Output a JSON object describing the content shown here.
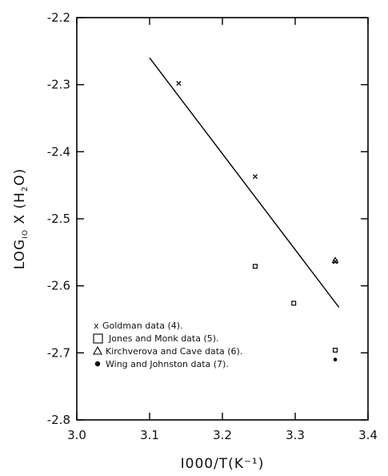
{
  "chart_data": {
    "type": "scatter",
    "xlabel": "I000/T(K⁻¹)",
    "ylabel_parts": {
      "prefix": "LOG",
      "subscript": "IO",
      "mid": " X (H",
      "subscript2": "2",
      "suffix": "O)"
    },
    "xlim": [
      3.0,
      3.4
    ],
    "ylim": [
      -2.8,
      -2.2
    ],
    "xticks": [
      3.0,
      3.1,
      3.2,
      3.3,
      3.4
    ],
    "xtick_labels": [
      "3.0",
      "3.1",
      "3.2",
      "3.3",
      "3.4"
    ],
    "yticks": [
      -2.2,
      -2.3,
      -2.4,
      -2.5,
      -2.6,
      -2.7,
      -2.8
    ],
    "ytick_labels": [
      "-2.2",
      "-2.3",
      "-2.4",
      "-2.5",
      "-2.6",
      "-2.7",
      "-2.8"
    ],
    "grid": false,
    "legend_position": "bottom-left",
    "fit_line": {
      "x": [
        3.1,
        3.36
      ],
      "y": [
        -2.26,
        -2.632
      ]
    },
    "series": [
      {
        "name": "Goldman data (4).",
        "marker": "x",
        "legend_symbol": "x",
        "points": [
          {
            "x": 3.14,
            "y": -2.298
          },
          {
            "x": 3.245,
            "y": -2.437
          },
          {
            "x": 3.355,
            "y": -2.564
          }
        ]
      },
      {
        "name": "Jones and Monk data (5).",
        "marker": "square",
        "points": [
          {
            "x": 3.245,
            "y": -2.571
          },
          {
            "x": 3.298,
            "y": -2.626
          },
          {
            "x": 3.355,
            "y": -2.696
          }
        ]
      },
      {
        "name": "Kirchverova and Cave data (6).",
        "marker": "triangle",
        "points": [
          {
            "x": 3.355,
            "y": -2.562
          }
        ]
      },
      {
        "name": "Wing and Johnston data (7).",
        "marker": "dot",
        "points": [
          {
            "x": 3.355,
            "y": -2.71
          }
        ]
      }
    ]
  }
}
